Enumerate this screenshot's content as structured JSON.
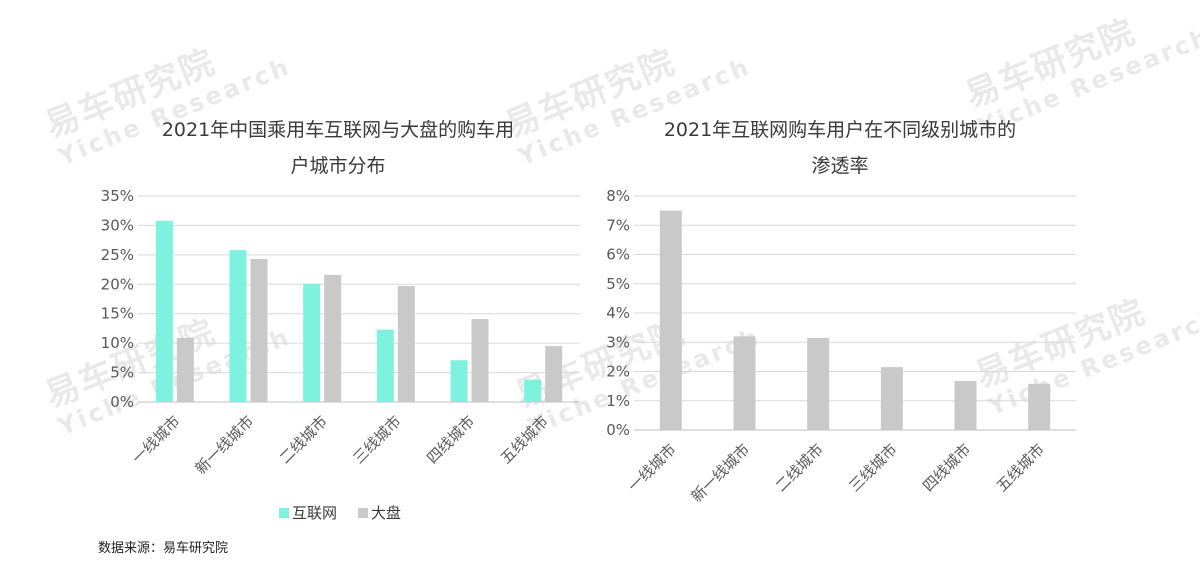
{
  "watermark": {
    "cn": "易车研究院",
    "en": "Yiche Research"
  },
  "colors": {
    "internet": "#7ff2df",
    "overall": "#c9c9c9",
    "grid": "#d9d9d9",
    "axis": "#bfbfbf"
  },
  "source": "数据来源：易车研究院",
  "chart_data": [
    {
      "type": "bar",
      "title_lines": [
        "2021年中国乘用车互联网与大盘的购车用",
        "户城市分布"
      ],
      "categories": [
        "一线城市",
        "新一线城市",
        "二线城市",
        "三线城市",
        "四线城市",
        "五线城市"
      ],
      "series": [
        {
          "name": "互联网",
          "values": [
            30.8,
            25.8,
            20.1,
            12.3,
            7.1,
            3.8
          ]
        },
        {
          "name": "大盘",
          "values": [
            10.9,
            24.3,
            21.6,
            19.7,
            14.1,
            9.5
          ]
        }
      ],
      "ylim": [
        0,
        35
      ],
      "yticks": [
        "0%",
        "5%",
        "10%",
        "15%",
        "20%",
        "25%",
        "30%",
        "35%"
      ],
      "grid": true,
      "legend": "bottom"
    },
    {
      "type": "bar",
      "title_lines": [
        "2021年互联网购车用户在不同级别城市的",
        "渗透率"
      ],
      "categories": [
        "一线城市",
        "新一线城市",
        "二线城市",
        "三线城市",
        "四线城市",
        "五线城市"
      ],
      "series": [
        {
          "values": [
            7.5,
            3.2,
            3.15,
            2.15,
            1.68,
            1.58
          ]
        }
      ],
      "ylim": [
        0,
        8
      ],
      "yticks": [
        "0%",
        "1%",
        "2%",
        "3%",
        "4%",
        "5%",
        "6%",
        "7%",
        "8%"
      ],
      "grid": true
    }
  ]
}
